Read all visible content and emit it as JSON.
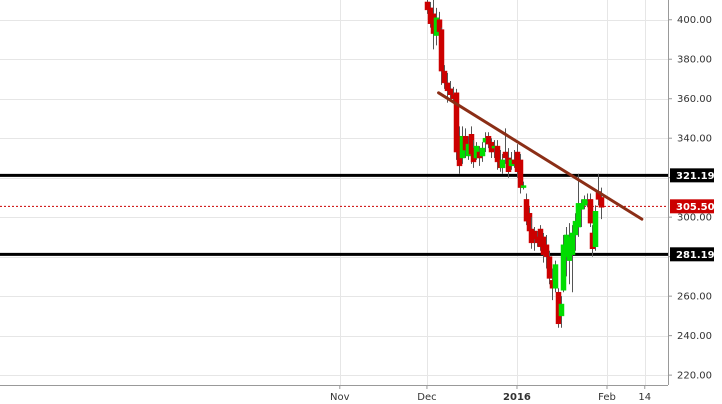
{
  "chart_data": {
    "type": "candlestick",
    "ylim": [
      215,
      410
    ],
    "x_range": [
      -178,
      52
    ],
    "y_ticks": [
      220,
      240,
      260,
      280,
      300,
      320,
      340,
      360,
      380,
      400
    ],
    "y_tick_labels": [
      "220.00",
      "240.00",
      "260.00",
      "280.00",
      "300.00",
      "320.00",
      "340.00",
      "360.00",
      "380.00",
      "400.00"
    ],
    "x_ticks": [
      {
        "label": "Nov",
        "day": -61,
        "bold": false
      },
      {
        "label": "Dec",
        "day": -31,
        "bold": false
      },
      {
        "label": "2016",
        "day": 0,
        "bold": true
      },
      {
        "label": "Feb",
        "day": 31,
        "bold": false
      },
      {
        "label": "14",
        "day": 44,
        "bold": false
      }
    ],
    "grid": true,
    "colors": {
      "up": "#00dd00",
      "down": "#cc0000",
      "trendline": "#8b2e16",
      "horizontal_level": "#000000",
      "last_price_line": "#cc0000",
      "badge_bg": "#000000",
      "last_badge_bg": "#cc0000",
      "grid": "#e6e6e6"
    },
    "levels": [
      321.19,
      281.19
    ],
    "level_labels": [
      "321.19",
      "281.19"
    ],
    "last_price": 305.5,
    "last_price_label": "305.50",
    "trendline": {
      "start": {
        "day": -27,
        "value": 363
      },
      "end": {
        "day": 43,
        "value": 299
      }
    },
    "candles": [
      {
        "day": -31,
        "open": 409,
        "high": 410,
        "low": 403,
        "close": 405
      },
      {
        "day": -30,
        "open": 406,
        "high": 409,
        "low": 396,
        "close": 398
      },
      {
        "day": -29,
        "open": 403,
        "high": 410,
        "low": 385,
        "close": 393
      },
      {
        "day": -28,
        "open": 392,
        "high": 406,
        "low": 387,
        "close": 401
      },
      {
        "day": -27,
        "open": 400,
        "high": 404,
        "low": 390,
        "close": 394
      },
      {
        "day": -26,
        "open": 395,
        "high": 396,
        "low": 367,
        "close": 374
      },
      {
        "day": -25,
        "open": 374,
        "high": 377,
        "low": 365,
        "close": 368
      },
      {
        "day": -24,
        "open": 368,
        "high": 373,
        "low": 358,
        "close": 364
      },
      {
        "day": -23,
        "open": 365,
        "high": 369,
        "low": 360,
        "close": 362
      },
      {
        "day": -22,
        "open": 362,
        "high": 366,
        "low": 358,
        "close": 360
      },
      {
        "day": -21,
        "open": 363,
        "high": 365,
        "low": 329,
        "close": 333
      },
      {
        "day": -20,
        "open": 341,
        "high": 346,
        "low": 322,
        "close": 326
      },
      {
        "day": -19,
        "open": 330,
        "high": 346,
        "low": 327,
        "close": 341
      },
      {
        "day": -18,
        "open": 341,
        "high": 345,
        "low": 330,
        "close": 334
      },
      {
        "day": -17,
        "open": 331,
        "high": 341,
        "low": 329,
        "close": 337
      },
      {
        "day": -16,
        "open": 342,
        "high": 346,
        "low": 327,
        "close": 332
      },
      {
        "day": -15,
        "open": 335,
        "high": 339,
        "low": 325,
        "close": 328
      },
      {
        "day": -14,
        "open": 330,
        "high": 338,
        "low": 329,
        "close": 336
      },
      {
        "day": -13,
        "open": 333,
        "high": 336,
        "low": 326,
        "close": 330
      },
      {
        "day": -12,
        "open": 331,
        "high": 338,
        "low": 328,
        "close": 335
      },
      {
        "day": -11,
        "open": 338,
        "high": 343,
        "low": 333,
        "close": 340
      },
      {
        "day": -10,
        "open": 341,
        "high": 343,
        "low": 335,
        "close": 337
      },
      {
        "day": -9,
        "open": 338,
        "high": 340,
        "low": 330,
        "close": 333
      },
      {
        "day": -8,
        "open": 335,
        "high": 339,
        "low": 330,
        "close": 336
      },
      {
        "day": -7,
        "open": 336,
        "high": 339,
        "low": 324,
        "close": 328
      },
      {
        "day": -6,
        "open": 329,
        "high": 334,
        "low": 323,
        "close": 325
      },
      {
        "day": -5,
        "open": 325,
        "high": 332,
        "low": 322,
        "close": 329
      },
      {
        "day": -4,
        "open": 333,
        "high": 345,
        "low": 327,
        "close": 330
      },
      {
        "day": -3,
        "open": 330,
        "high": 335,
        "low": 320,
        "close": 323
      },
      {
        "day": -2,
        "open": 326,
        "high": 333,
        "low": 324,
        "close": 329
      },
      {
        "day": -1,
        "open": 329,
        "high": 334,
        "low": 325,
        "close": 327
      },
      {
        "day": 0,
        "open": 333,
        "high": 337,
        "low": 320,
        "close": 323
      },
      {
        "day": 1,
        "open": 329,
        "high": 332,
        "low": 312,
        "close": 315
      },
      {
        "day": 2,
        "open": 315,
        "high": 318,
        "low": 314,
        "close": 316
      },
      {
        "day": 3,
        "open": 309,
        "high": 312,
        "low": 296,
        "close": 298
      },
      {
        "day": 4,
        "open": 302,
        "high": 305,
        "low": 289,
        "close": 293
      },
      {
        "day": 5,
        "open": 294,
        "high": 300,
        "low": 284,
        "close": 287
      },
      {
        "day": 6,
        "open": 293,
        "high": 295,
        "low": 283,
        "close": 289
      },
      {
        "day": 7,
        "open": 290,
        "high": 293,
        "low": 285,
        "close": 287
      },
      {
        "day": 8,
        "open": 294,
        "high": 296,
        "low": 283,
        "close": 285
      },
      {
        "day": 9,
        "open": 290,
        "high": 292,
        "low": 277,
        "close": 281
      },
      {
        "day": 10,
        "open": 286,
        "high": 291,
        "low": 274,
        "close": 280
      },
      {
        "day": 11,
        "open": 280,
        "high": 283,
        "low": 266,
        "close": 269
      },
      {
        "day": 12,
        "open": 268,
        "high": 274,
        "low": 258,
        "close": 264
      },
      {
        "day": 13,
        "open": 264,
        "high": 278,
        "low": 262,
        "close": 276
      },
      {
        "day": 14,
        "open": 262,
        "high": 264,
        "low": 244,
        "close": 246
      },
      {
        "day": 15,
        "open": 250,
        "high": 260,
        "low": 244,
        "close": 256
      },
      {
        "day": 16,
        "open": 263,
        "high": 291,
        "low": 262,
        "close": 286
      },
      {
        "day": 17,
        "open": 280,
        "high": 295,
        "low": 270,
        "close": 291
      },
      {
        "day": 18,
        "open": 278,
        "high": 297,
        "low": 266,
        "close": 290
      },
      {
        "day": 19,
        "open": 281,
        "high": 296,
        "low": 262,
        "close": 292
      },
      {
        "day": 20,
        "open": 291,
        "high": 302,
        "low": 283,
        "close": 298
      },
      {
        "day": 21,
        "open": 295,
        "high": 322,
        "low": 290,
        "close": 307
      },
      {
        "day": 22,
        "open": 304,
        "high": 309,
        "low": 295,
        "close": 307
      },
      {
        "day": 23,
        "open": 306,
        "high": 311,
        "low": 304,
        "close": 309
      },
      {
        "day": 24,
        "open": 307,
        "high": 312,
        "low": 305,
        "close": 308
      },
      {
        "day": 25,
        "open": 309,
        "high": 312,
        "low": 295,
        "close": 297
      },
      {
        "day": 26,
        "open": 292,
        "high": 296,
        "low": 280,
        "close": 284
      },
      {
        "day": 27,
        "open": 285,
        "high": 306,
        "low": 283,
        "close": 303
      },
      {
        "day": 28,
        "open": 313,
        "high": 322,
        "low": 306,
        "close": 309
      },
      {
        "day": 29,
        "open": 310,
        "high": 315,
        "low": 299,
        "close": 305
      }
    ]
  }
}
